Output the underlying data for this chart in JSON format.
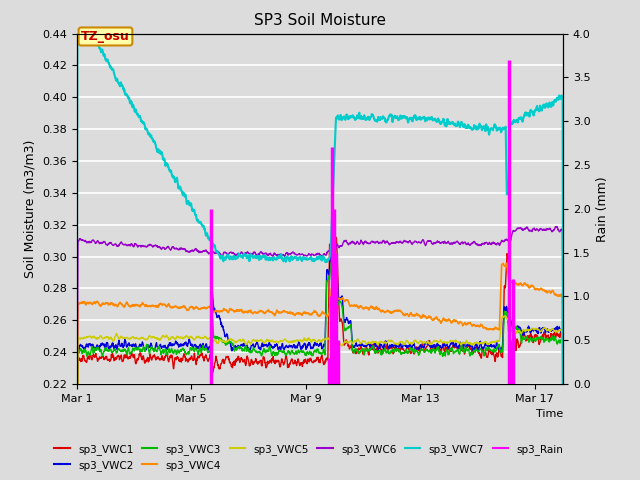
{
  "title": "SP3 Soil Moisture",
  "xlabel": "Time",
  "ylabel_left": "Soil Moisture (m3/m3)",
  "ylabel_right": "Rain (mm)",
  "ylim_left": [
    0.22,
    0.44
  ],
  "ylim_right": [
    0.0,
    4.0
  ],
  "xlim": [
    0,
    17
  ],
  "xticks": [
    0,
    4,
    8,
    12,
    16
  ],
  "xticklabels": [
    "Mar 1",
    "Mar 5",
    "Mar 9",
    "Mar 13",
    "Mar 17"
  ],
  "yticks_left": [
    0.22,
    0.24,
    0.26,
    0.28,
    0.3,
    0.32,
    0.34,
    0.36,
    0.38,
    0.4,
    0.42,
    0.44
  ],
  "yticks_right": [
    0.0,
    0.5,
    1.0,
    1.5,
    2.0,
    2.5,
    3.0,
    3.5,
    4.0
  ],
  "bg_color": "#dcdcdc",
  "annotation_text": "TZ_osu",
  "colors": {
    "sp3_VWC1": "#dd0000",
    "sp3_VWC2": "#0000dd",
    "sp3_VWC3": "#00bb00",
    "sp3_VWC4": "#ff8800",
    "sp3_VWC5": "#cccc00",
    "sp3_VWC6": "#9900cc",
    "sp3_VWC7": "#00cccc",
    "sp3_Rain": "#ff00ff"
  },
  "legend_order": [
    "sp3_VWC1",
    "sp3_VWC2",
    "sp3_VWC3",
    "sp3_VWC4",
    "sp3_VWC5",
    "sp3_VWC6",
    "sp3_VWC7",
    "sp3_Rain"
  ]
}
